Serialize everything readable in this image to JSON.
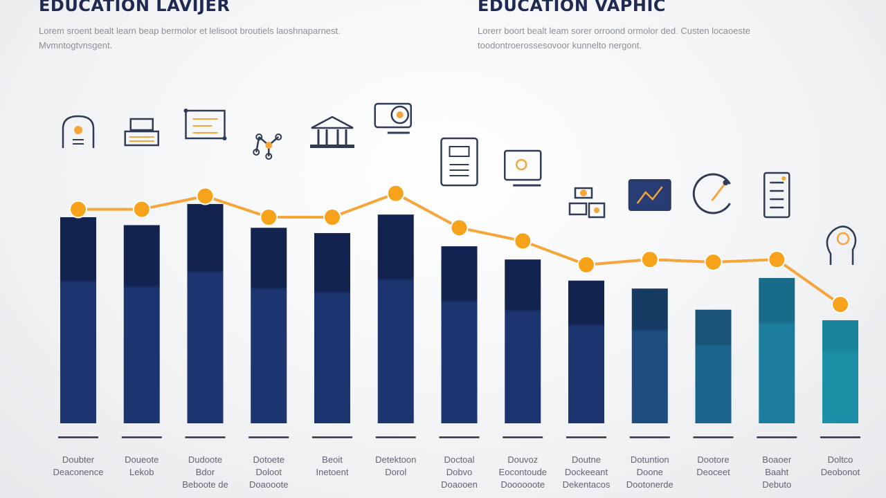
{
  "header": {
    "title_left": "EDUCATION LAVIJER",
    "subtitle_left": "Lorem sroent bealt learn beap bermolor et lelisoot broutiels laoshnaparnest. Mvmntogtvnsgent.",
    "title_right": "EDUCATION VAPHIC",
    "subtitle_right": "Lorerr boort bealt leam sorer orroond ormolor ded. Custen locaoeste toodontroerossesovoor kunnelto nergont."
  },
  "chart_data": {
    "type": "bar",
    "categories": [
      "Doubter\nDeaconence",
      "Doueote\nLekob",
      "Dudoote\nBdor\nBeboote de",
      "Dotoete\nDoloot\nDoaooote",
      "Beoit\nInetoent",
      "Detektoon\nDorol",
      "Doctoal\nDobvo\nDoaooen",
      "Douvoz\nEocontoude\nDoooooote",
      "Doutne\nDockeeant\nDekentacos",
      "Dotuntion\nDoone\nDootonerde",
      "Dootore\nDeoceet",
      "Boaoer\nBaaht\nDebuto",
      "Doltco\nDeobonot"
    ],
    "series": [
      {
        "type": "bar",
        "values": [
          78,
          75,
          83,
          74,
          72,
          79,
          67,
          62,
          54,
          51,
          43,
          55,
          39
        ]
      },
      {
        "type": "line",
        "values": [
          81,
          81,
          86,
          78,
          78,
          87,
          74,
          69,
          60,
          62,
          61,
          62,
          45
        ]
      }
    ],
    "icons": [
      "head-gear-icon",
      "books-icon",
      "flowchart-icon",
      "molecule-icon",
      "university-building-icon",
      "monitor-lock-icon",
      "tablet-device-icon",
      "laptop-screen-icon",
      "puzzle-network-icon",
      "monitor-chart-icon",
      "compass-arc-icon",
      "server-rack-icon",
      "head-profile-icon"
    ],
    "ylim": [
      0,
      100
    ],
    "grid": false,
    "legend": "none",
    "colors": {
      "bar_dark": "#13234f",
      "bar_teal": "#1b8fa6",
      "line": "#f6a53a",
      "marker": "#f7a21b",
      "icon": "#2f3a55",
      "icon_accent": "#f6a53a",
      "baseline": "#2e3446"
    }
  }
}
